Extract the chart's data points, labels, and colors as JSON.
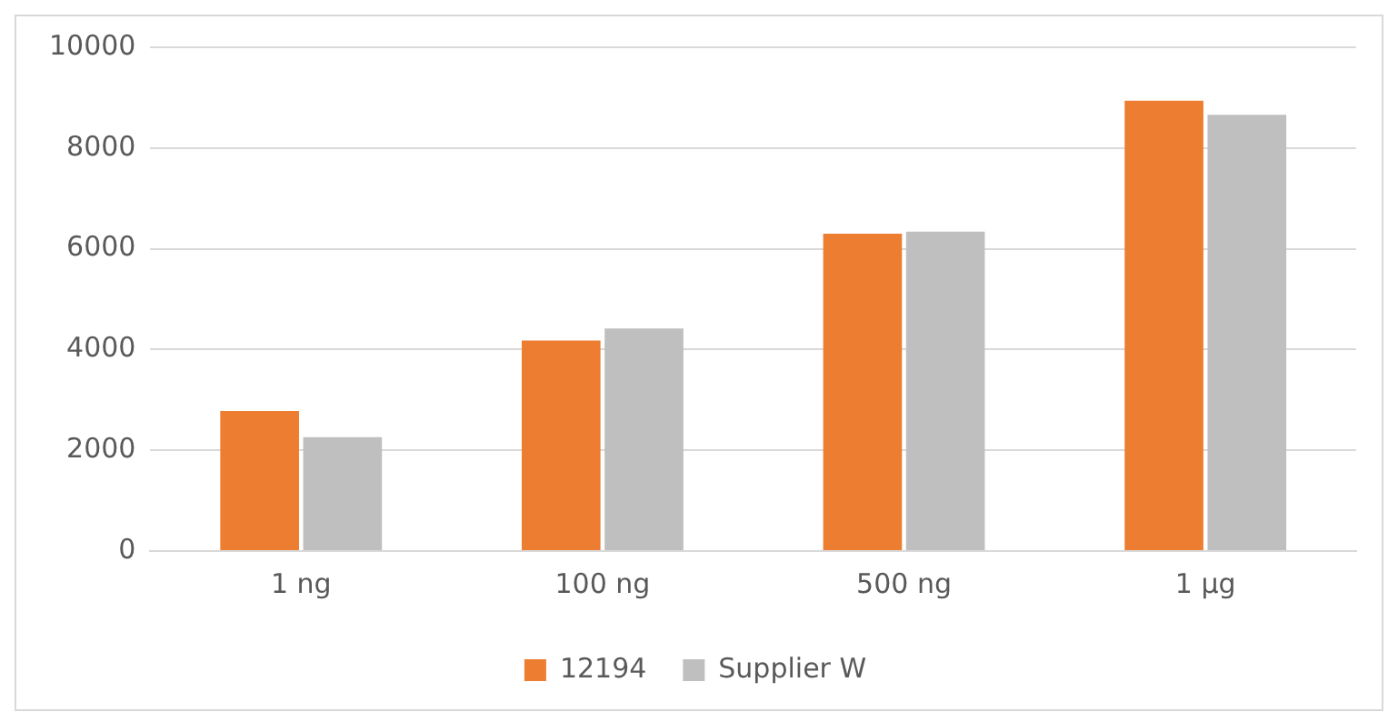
{
  "chart_data": {
    "type": "bar",
    "categories": [
      "1 ng",
      "100 ng",
      "500 ng",
      "1 µg"
    ],
    "series": [
      {
        "name": "12194",
        "color": "#ed7d31",
        "values": [
          2780,
          4180,
          6300,
          8940
        ]
      },
      {
        "name": "Supplier W",
        "color": "#bfbfbf",
        "values": [
          2260,
          4420,
          6340,
          8660
        ]
      }
    ],
    "ylim": [
      0,
      10000
    ],
    "yticks": [
      0,
      2000,
      4000,
      6000,
      8000,
      10000
    ],
    "grid": "y",
    "legend": "bottom"
  }
}
